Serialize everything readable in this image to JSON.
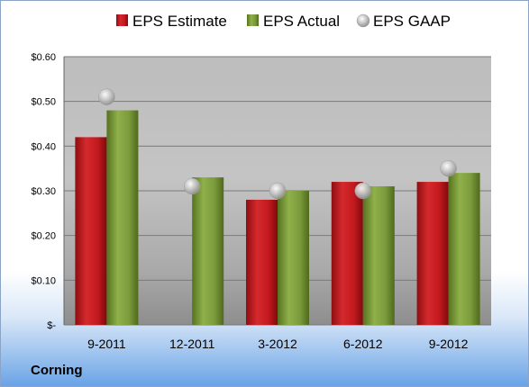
{
  "company": "Corning",
  "chart_data": {
    "type": "bar",
    "categories": [
      "9-2011",
      "12-2011",
      "3-2012",
      "6-2012",
      "9-2012"
    ],
    "series": [
      {
        "name": "EPS Estimate",
        "kind": "bar",
        "color": "#c0161c",
        "values": [
          0.42,
          null,
          0.28,
          0.32,
          0.32
        ]
      },
      {
        "name": "EPS Actual",
        "kind": "bar",
        "color": "#77993a",
        "values": [
          0.48,
          0.33,
          0.3,
          0.31,
          0.34
        ]
      },
      {
        "name": "EPS GAAP",
        "kind": "marker",
        "color": "#b8b8b8",
        "values": [
          0.51,
          0.31,
          0.3,
          0.3,
          0.35
        ]
      }
    ],
    "yticks": [
      {
        "value": 0.6,
        "label": "$0.60"
      },
      {
        "value": 0.5,
        "label": "$0.50"
      },
      {
        "value": 0.4,
        "label": "$0.40"
      },
      {
        "value": 0.3,
        "label": "$0.30"
      },
      {
        "value": 0.2,
        "label": "$0.20"
      },
      {
        "value": 0.1,
        "label": "$0.10"
      },
      {
        "value": 0.0,
        "label": "$-"
      }
    ],
    "ylim": [
      0,
      0.6
    ],
    "grid": true,
    "legend_position": "top"
  }
}
